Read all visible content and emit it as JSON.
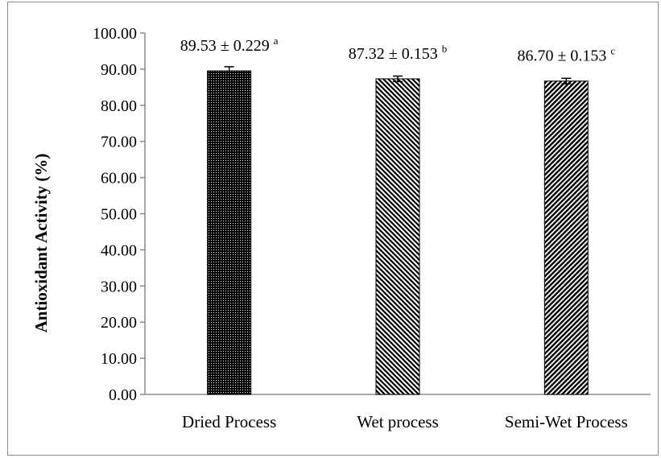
{
  "chart_data": {
    "type": "bar",
    "categories": [
      "Dried Process",
      "Wet process",
      "Semi-Wet Process"
    ],
    "series": [
      {
        "values": [
          89.53,
          87.32,
          86.7
        ],
        "errors": [
          0.229,
          0.153,
          0.153
        ],
        "patterns": [
          "dots",
          "diagonal",
          "diagonal-dense"
        ]
      }
    ],
    "data_labels": [
      {
        "text": "89.53 ± 0.229",
        "sup": "a"
      },
      {
        "text": "87.32 ± 0.153",
        "sup": "b"
      },
      {
        "text": "86.70 ± 0.153",
        "sup": "c"
      }
    ],
    "title": "",
    "xlabel": "",
    "ylabel": "Antioxidant Activity (%)",
    "ylim": [
      0,
      100
    ],
    "yticks": [
      "0.00",
      "10.00",
      "20.00",
      "30.00",
      "40.00",
      "50.00",
      "60.00",
      "70.00",
      "80.00",
      "90.00",
      "100.00"
    ],
    "grid": false,
    "legend": "none",
    "colors": {
      "bar": "#000000",
      "axis": "#8c8c8c"
    }
  }
}
